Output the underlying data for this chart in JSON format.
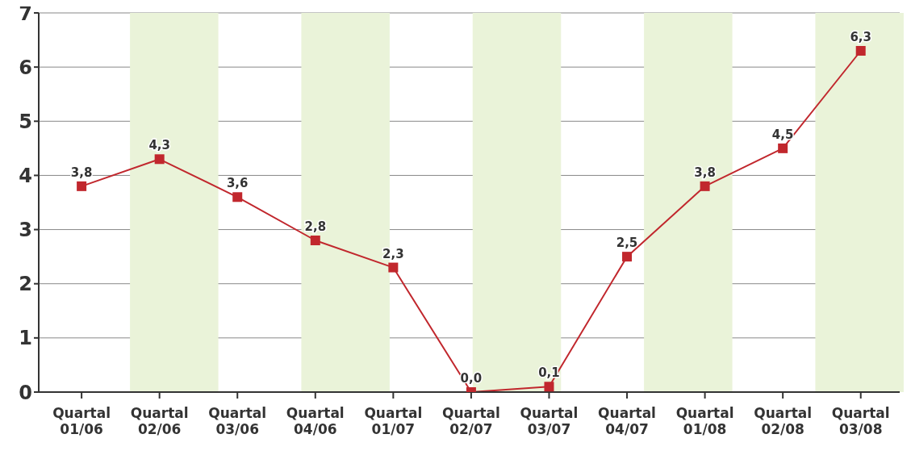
{
  "chart_data": {
    "type": "line",
    "categories": [
      "Quartal 01/06",
      "Quartal 02/06",
      "Quartal 03/06",
      "Quartal 04/06",
      "Quartal 01/07",
      "Quartal 02/07",
      "Quartal 03/07",
      "Quartal 04/07",
      "Quartal 01/08",
      "Quartal 02/08",
      "Quartal 03/08"
    ],
    "series": [
      {
        "color": "#c1272d",
        "values": [
          3.8,
          4.3,
          3.6,
          2.8,
          2.3,
          0.0,
          0.1,
          2.5,
          3.8,
          4.5,
          6.3
        ],
        "value_labels": [
          "3,8",
          "4,3",
          "3,6",
          "2,8",
          "2,3",
          "0,0",
          "0,1",
          "2,5",
          "3,8",
          "4,5",
          "6,3"
        ]
      }
    ],
    "ylim": [
      0,
      7
    ],
    "yticks": [
      0,
      1,
      2,
      3,
      4,
      5,
      6,
      7
    ],
    "grid": "y",
    "marker": "square",
    "line_style": "solid",
    "legend": false
  }
}
